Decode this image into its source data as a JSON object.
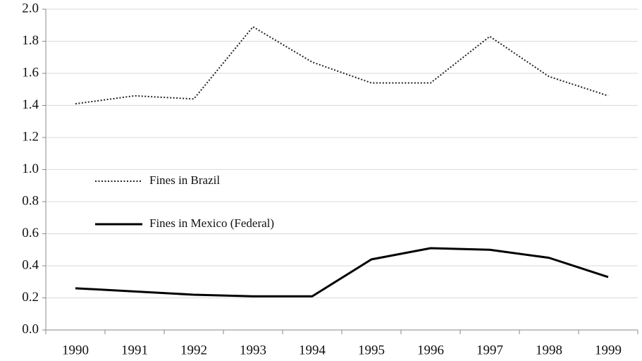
{
  "chart_data": {
    "type": "line",
    "categories": [
      "1990",
      "1991",
      "1992",
      "1993",
      "1994",
      "1995",
      "1996",
      "1997",
      "1998",
      "1999"
    ],
    "series": [
      {
        "name": "Fines in Brazil",
        "color": "#222222",
        "dash": "dotted",
        "values": [
          1.41,
          1.46,
          1.44,
          1.89,
          1.67,
          1.54,
          1.54,
          1.83,
          1.58,
          1.46
        ]
      },
      {
        "name": "Fines in Mexico (Federal)",
        "color": "#000000",
        "dash": "solid",
        "values": [
          0.26,
          0.24,
          0.22,
          0.21,
          0.21,
          0.44,
          0.51,
          0.5,
          0.45,
          0.33
        ]
      }
    ],
    "ylim": [
      0,
      2
    ],
    "yticks": [
      {
        "value": 0,
        "label": "0.0"
      },
      0.2,
      0.4,
      0.6,
      0.8,
      {
        "value": 1,
        "label": "1.0"
      },
      1.2,
      1.4,
      1.6,
      1.8,
      {
        "value": 2,
        "label": "2.0"
      }
    ],
    "grid": true
  }
}
